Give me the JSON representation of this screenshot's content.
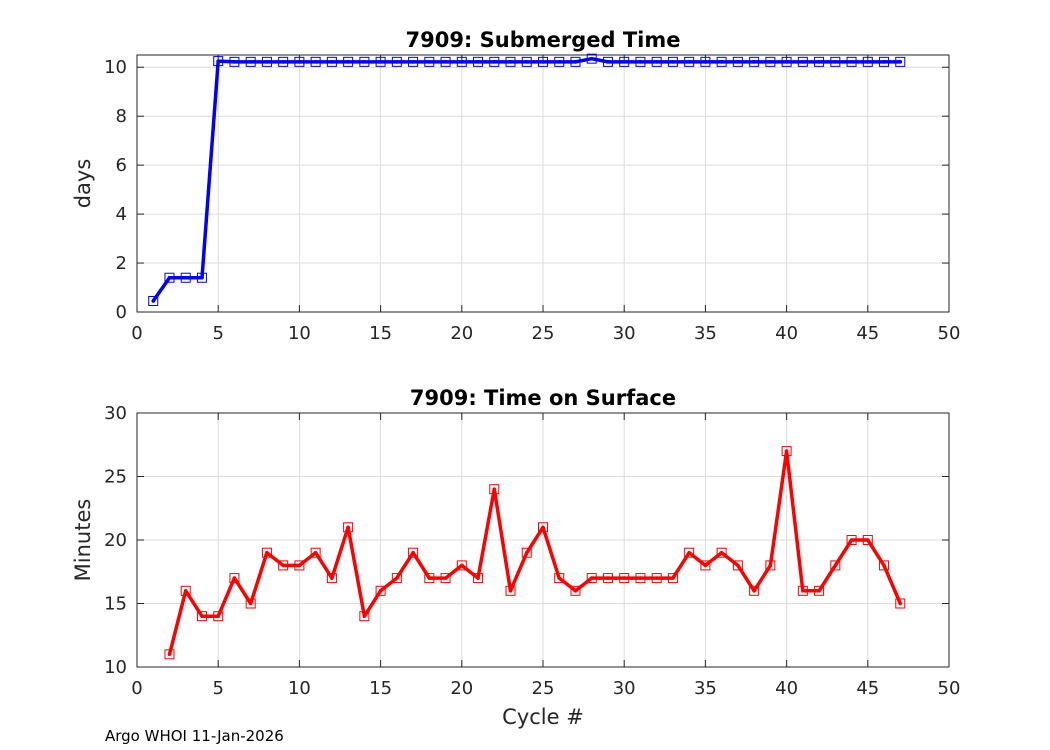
{
  "chart_data": [
    {
      "type": "line",
      "title": "7909: Submerged Time",
      "xlabel": "",
      "ylabel": "days",
      "xlim": [
        0,
        50
      ],
      "ylim": [
        0,
        10.5
      ],
      "xticks": [
        0,
        5,
        10,
        15,
        20,
        25,
        30,
        35,
        40,
        45,
        50
      ],
      "yticks": [
        0,
        2,
        4,
        6,
        8,
        10
      ],
      "grid": true,
      "color": "#0000ff",
      "marker": "square",
      "series": [
        {
          "name": "Submerged Time",
          "x": [
            1,
            2,
            3,
            4,
            5,
            6,
            7,
            8,
            9,
            10,
            11,
            12,
            13,
            14,
            15,
            16,
            17,
            18,
            19,
            20,
            21,
            22,
            23,
            24,
            25,
            26,
            27,
            28,
            29,
            30,
            31,
            32,
            33,
            34,
            35,
            36,
            37,
            38,
            39,
            40,
            41,
            42,
            43,
            44,
            45,
            46,
            47
          ],
          "y": [
            0.45,
            1.4,
            1.4,
            1.4,
            10.25,
            10.22,
            10.22,
            10.22,
            10.22,
            10.22,
            10.22,
            10.22,
            10.22,
            10.22,
            10.22,
            10.22,
            10.22,
            10.22,
            10.22,
            10.22,
            10.22,
            10.22,
            10.22,
            10.22,
            10.22,
            10.22,
            10.22,
            10.35,
            10.22,
            10.22,
            10.22,
            10.22,
            10.22,
            10.22,
            10.22,
            10.22,
            10.22,
            10.22,
            10.22,
            10.22,
            10.22,
            10.22,
            10.22,
            10.22,
            10.22,
            10.22,
            10.22
          ]
        }
      ]
    },
    {
      "type": "line",
      "title": "7909: Time on Surface",
      "xlabel": "Cycle #",
      "ylabel": "Minutes",
      "xlim": [
        0,
        50
      ],
      "ylim": [
        10,
        30
      ],
      "xticks": [
        0,
        5,
        10,
        15,
        20,
        25,
        30,
        35,
        40,
        45,
        50
      ],
      "yticks": [
        10,
        15,
        20,
        25,
        30
      ],
      "grid": true,
      "color": "#ff0000",
      "marker": "square",
      "series": [
        {
          "name": "Time on Surface",
          "x": [
            2,
            3,
            4,
            5,
            6,
            7,
            8,
            9,
            10,
            11,
            12,
            13,
            14,
            15,
            16,
            17,
            18,
            19,
            20,
            21,
            22,
            23,
            24,
            25,
            26,
            27,
            28,
            29,
            30,
            31,
            32,
            33,
            34,
            35,
            36,
            37,
            38,
            39,
            40,
            41,
            42,
            43,
            44,
            45,
            46,
            47
          ],
          "y": [
            11,
            16,
            14,
            14,
            17,
            15,
            19,
            18,
            18,
            19,
            17,
            21,
            14,
            16,
            17,
            19,
            17,
            17,
            18,
            17,
            24,
            16,
            19,
            21,
            17,
            16,
            17,
            17,
            17,
            17,
            17,
            17,
            19,
            18,
            19,
            18,
            16,
            18,
            27,
            16,
            16,
            18,
            20,
            20,
            18,
            15
          ]
        }
      ]
    }
  ],
  "footer": "Argo WHOI 11-Jan-2026"
}
